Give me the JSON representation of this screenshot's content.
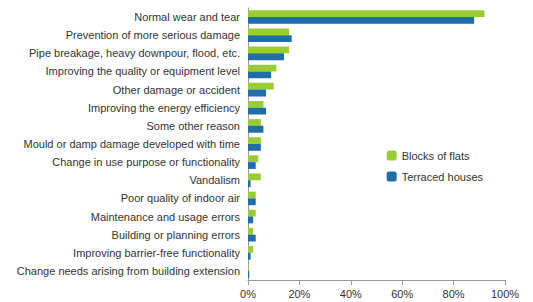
{
  "chart_data": {
    "type": "bar",
    "orientation": "horizontal",
    "categories": [
      "Normal wear and tear",
      "Prevention of more serious damage",
      "Pipe breakage, heavy downpour, flood, etc.",
      "Improving the quality or equipment level",
      "Other damage or accident",
      "Improving the energy efficiency",
      "Some other reason",
      "Mould or damp damage developed with time",
      "Change in use purpose or functionality",
      "Vandalism",
      "Poor quality of indoor air",
      "Maintenance and usage errors",
      "Building or planning errors",
      "Improving barrier-free functionality",
      "Change needs arising from building extension"
    ],
    "series": [
      {
        "name": "Blocks of flats",
        "color": "#9acd32",
        "values": [
          92,
          16,
          16,
          11,
          10,
          6,
          5,
          5,
          4,
          5,
          3,
          3,
          2,
          2,
          0.3
        ]
      },
      {
        "name": "Terraced houses",
        "color": "#1f6ea8",
        "values": [
          88,
          17,
          14,
          9,
          7,
          7,
          6,
          5,
          3,
          1,
          3,
          2,
          3,
          1,
          0.5
        ]
      }
    ],
    "xlim": [
      0,
      100
    ],
    "xticks": [
      {
        "value": 0,
        "label": "0%"
      },
      {
        "value": 20,
        "label": "20%"
      },
      {
        "value": 40,
        "label": "40%"
      },
      {
        "value": 60,
        "label": "60%"
      },
      {
        "value": 80,
        "label": "80%"
      },
      {
        "value": 100,
        "label": "100%"
      }
    ],
    "grid": false,
    "legend": "right"
  }
}
